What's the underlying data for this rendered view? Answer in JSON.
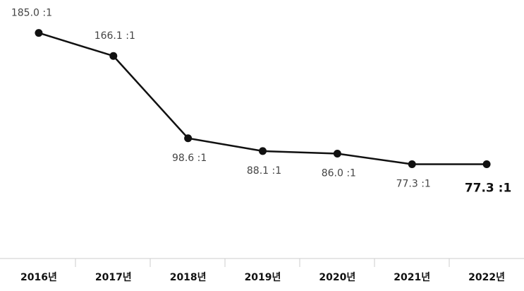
{
  "chart_data": {
    "type": "line",
    "categories": [
      "2016년",
      "2017년",
      "2018년",
      "2019년",
      "2020년",
      "2021년",
      "2022년"
    ],
    "values": [
      185.0,
      166.1,
      98.6,
      88.1,
      86.0,
      77.3,
      77.3
    ],
    "value_labels": [
      "185.0 :1",
      "166.1 :1",
      "98.6 :1",
      "88.1 :1",
      "86.0 :1",
      "77.3 :1",
      "77.3 :1"
    ],
    "color": "#111111",
    "ylim": [
      0,
      212
    ]
  }
}
